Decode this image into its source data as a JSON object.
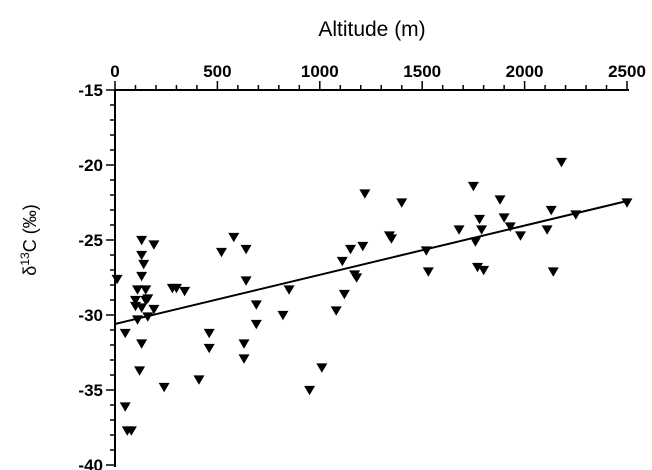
{
  "chart_data": {
    "type": "scatter",
    "title": "",
    "xlabel": "Altitude (m)",
    "ylabel_main": "δ",
    "ylabel_sup": "13",
    "ylabel_rest": "C (‰)",
    "x_axis_position": "top",
    "xlim": [
      0,
      2500
    ],
    "ylim": [
      -40,
      -15
    ],
    "x_ticks": [
      0,
      500,
      1000,
      1500,
      2000,
      2500
    ],
    "x_tick_labels": [
      "0",
      "500",
      "1000",
      "1500",
      "2000",
      "2500"
    ],
    "y_ticks": [
      -15,
      -20,
      -25,
      -30,
      -35,
      -40
    ],
    "y_tick_labels": [
      "-15",
      "-20",
      "-25",
      "-30",
      "-35",
      "-40"
    ],
    "grid": false,
    "marker": "down-triangle",
    "marker_color": "#000000",
    "points": [
      {
        "x": 10,
        "y": -27.6
      },
      {
        "x": 50,
        "y": -31.2
      },
      {
        "x": 50,
        "y": -36.1
      },
      {
        "x": 60,
        "y": -37.7
      },
      {
        "x": 80,
        "y": -37.7
      },
      {
        "x": 100,
        "y": -29.0
      },
      {
        "x": 100,
        "y": -29.4
      },
      {
        "x": 110,
        "y": -28.3
      },
      {
        "x": 110,
        "y": -30.3
      },
      {
        "x": 120,
        "y": -33.7
      },
      {
        "x": 130,
        "y": -25.0
      },
      {
        "x": 130,
        "y": -26.0
      },
      {
        "x": 130,
        "y": -27.4
      },
      {
        "x": 130,
        "y": -29.5
      },
      {
        "x": 130,
        "y": -31.9
      },
      {
        "x": 140,
        "y": -26.6
      },
      {
        "x": 150,
        "y": -28.3
      },
      {
        "x": 150,
        "y": -29.0
      },
      {
        "x": 160,
        "y": -30.1
      },
      {
        "x": 160,
        "y": -28.9
      },
      {
        "x": 190,
        "y": -25.3
      },
      {
        "x": 190,
        "y": -29.6
      },
      {
        "x": 240,
        "y": -34.8
      },
      {
        "x": 280,
        "y": -28.2
      },
      {
        "x": 300,
        "y": -28.2
      },
      {
        "x": 340,
        "y": -28.4
      },
      {
        "x": 410,
        "y": -34.3
      },
      {
        "x": 460,
        "y": -31.2
      },
      {
        "x": 460,
        "y": -32.2
      },
      {
        "x": 520,
        "y": -25.8
      },
      {
        "x": 580,
        "y": -24.8
      },
      {
        "x": 630,
        "y": -31.9
      },
      {
        "x": 630,
        "y": -32.9
      },
      {
        "x": 640,
        "y": -25.6
      },
      {
        "x": 640,
        "y": -27.7
      },
      {
        "x": 690,
        "y": -29.3
      },
      {
        "x": 690,
        "y": -30.6
      },
      {
        "x": 820,
        "y": -30.0
      },
      {
        "x": 850,
        "y": -28.3
      },
      {
        "x": 950,
        "y": -35.0
      },
      {
        "x": 1010,
        "y": -33.5
      },
      {
        "x": 1080,
        "y": -29.7
      },
      {
        "x": 1110,
        "y": -26.4
      },
      {
        "x": 1120,
        "y": -28.6
      },
      {
        "x": 1150,
        "y": -25.6
      },
      {
        "x": 1170,
        "y": -27.3
      },
      {
        "x": 1180,
        "y": -27.5
      },
      {
        "x": 1210,
        "y": -25.4
      },
      {
        "x": 1220,
        "y": -21.9
      },
      {
        "x": 1340,
        "y": -24.7
      },
      {
        "x": 1350,
        "y": -24.9
      },
      {
        "x": 1400,
        "y": -22.5
      },
      {
        "x": 1520,
        "y": -25.7
      },
      {
        "x": 1530,
        "y": -27.1
      },
      {
        "x": 1680,
        "y": -24.3
      },
      {
        "x": 1750,
        "y": -21.4
      },
      {
        "x": 1760,
        "y": -25.1
      },
      {
        "x": 1770,
        "y": -26.8
      },
      {
        "x": 1780,
        "y": -23.6
      },
      {
        "x": 1790,
        "y": -24.3
      },
      {
        "x": 1800,
        "y": -27.0
      },
      {
        "x": 1880,
        "y": -22.3
      },
      {
        "x": 1900,
        "y": -23.5
      },
      {
        "x": 1930,
        "y": -24.1
      },
      {
        "x": 1980,
        "y": -24.7
      },
      {
        "x": 2110,
        "y": -24.3
      },
      {
        "x": 2130,
        "y": -23.0
      },
      {
        "x": 2140,
        "y": -27.1
      },
      {
        "x": 2180,
        "y": -19.8
      },
      {
        "x": 2250,
        "y": -23.3
      },
      {
        "x": 2500,
        "y": -22.5
      }
    ],
    "fit_line": {
      "x": [
        0,
        2500
      ],
      "y": [
        -30.6,
        -22.4
      ]
    }
  }
}
